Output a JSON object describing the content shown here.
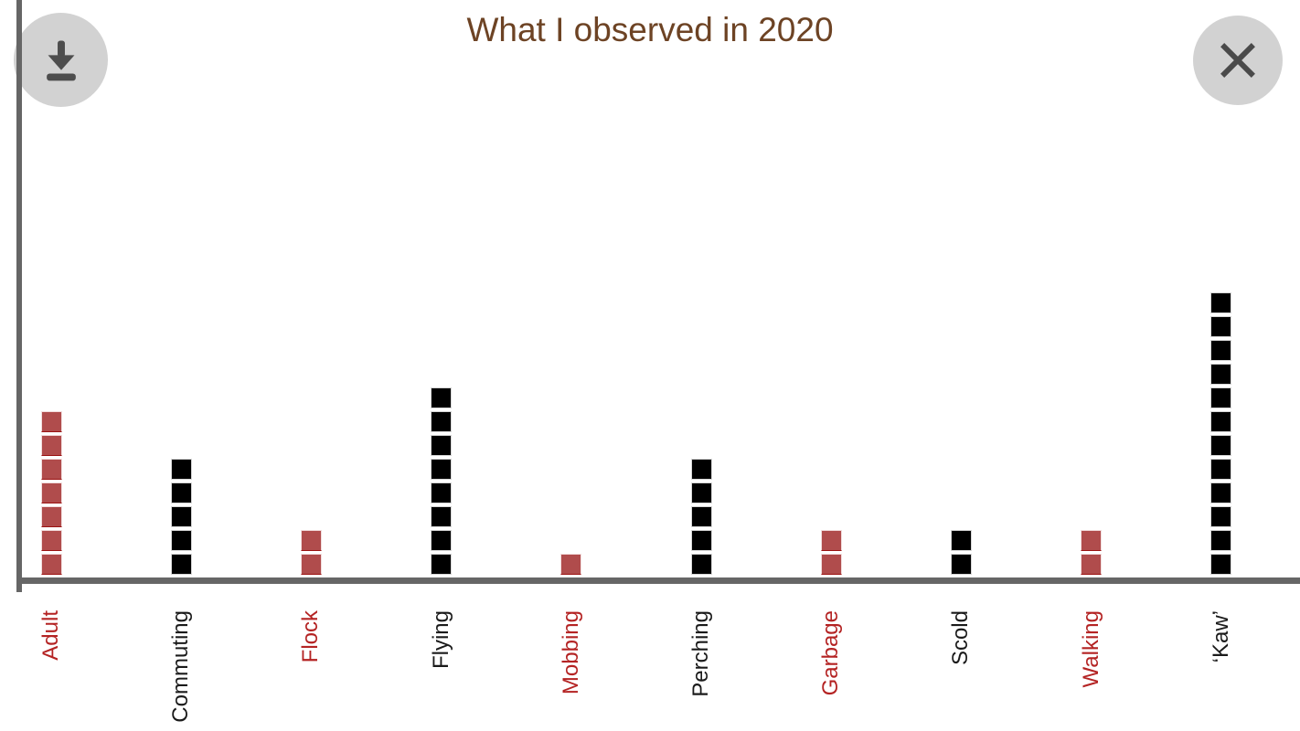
{
  "header": {
    "title": "What I observed in 2020",
    "download_icon": "download-arrow-with-tray",
    "close_icon": "x-cross"
  },
  "chart_data": {
    "type": "bar",
    "style": "pictograph-stacked-squares (1 square = 1 count)",
    "title": "What I observed in 2020",
    "xlabel": "",
    "ylabel": "",
    "ylim": [
      0,
      12
    ],
    "grid": false,
    "legend": "none",
    "categories": [
      "Adult",
      "Commuting",
      "Flock",
      "Flying",
      "Mobbing",
      "Perching",
      "Garbage",
      "Scold",
      "Walking",
      "‘Kaw’"
    ],
    "values": [
      7,
      5,
      2,
      8,
      1,
      5,
      2,
      2,
      2,
      12
    ],
    "color_key": [
      "red",
      "black",
      "red",
      "black",
      "red",
      "black",
      "red",
      "black",
      "red",
      "black"
    ],
    "palette": {
      "red": {
        "fill": "#b04c4c",
        "edge": "#f2dddd",
        "edge_bottom": "#9b1212",
        "label": "#b42323"
      },
      "black": {
        "fill": "#000000",
        "edge": "#d6d6d6",
        "edge_bottom": "#d6d6d6",
        "label": "#1a1a1a"
      }
    },
    "axis_color": "#666666",
    "title_color": "#6d4324",
    "background": "#ffffff"
  }
}
